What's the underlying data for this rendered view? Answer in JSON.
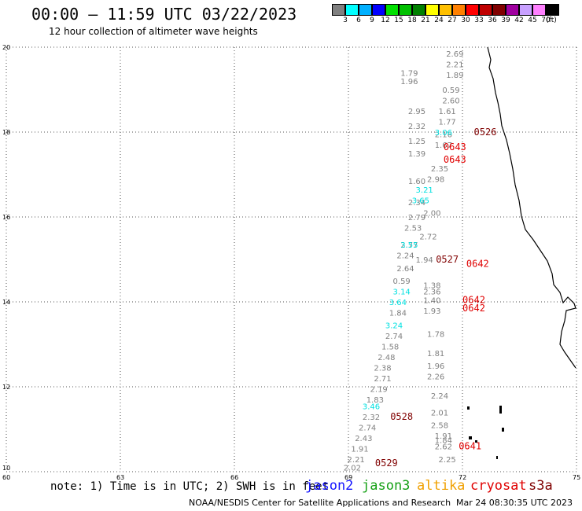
{
  "title": "00:00 – 11:59 UTC 03/22/2023",
  "subtitle": "12 hour collection of altimeter wave heights",
  "note": "note: 1) Time is in UTC; 2) SWH is in feet",
  "missions": [
    {
      "name": "jason2",
      "color": "#1515ff"
    },
    {
      "name": "jason3",
      "color": "#15a015"
    },
    {
      "name": "altika",
      "color": "#f0a000"
    },
    {
      "name": "cryosat",
      "color": "#e00000"
    },
    {
      "name": "s3a",
      "color": "#800000"
    }
  ],
  "credit": "NOAA/NESDIS Center for Satellite Applications and Research",
  "timestamp": "Mar 24 08:30:35 UTC 2023",
  "colorbar": {
    "unit": "(ft)",
    "bins": [
      {
        "label": "3",
        "color": "#808080"
      },
      {
        "label": "6",
        "color": "#00ffff"
      },
      {
        "label": "9",
        "color": "#00b0ff"
      },
      {
        "label": "12",
        "color": "#0000ff"
      },
      {
        "label": "15",
        "color": "#00e000"
      },
      {
        "label": "18",
        "color": "#00c000"
      },
      {
        "label": "21",
        "color": "#008000"
      },
      {
        "label": "24",
        "color": "#ffff00"
      },
      {
        "label": "27",
        "color": "#ffc000"
      },
      {
        "label": "30",
        "color": "#ff8000"
      },
      {
        "label": "33",
        "color": "#ff0000"
      },
      {
        "label": "36",
        "color": "#c00000"
      },
      {
        "label": "39",
        "color": "#800000"
      },
      {
        "label": "42",
        "color": "#a000a0"
      },
      {
        "label": "45",
        "color": "#c8a0ff"
      },
      {
        "label": "70",
        "color": "#ff80ff"
      },
      {
        "label": "",
        "color": "#000000"
      }
    ]
  },
  "chart_data": {
    "type": "scatter",
    "title": "00:00 – 11:59 UTC 03/22/2023",
    "xlim": [
      60,
      75
    ],
    "ylim": [
      10,
      20
    ],
    "x_ticks": [
      "60",
      "63",
      "66",
      "69",
      "72",
      "75"
    ],
    "y_ticks": [
      "10",
      "12",
      "14",
      "16",
      "18",
      "20"
    ],
    "grid": true,
    "colors": {
      "gray": "#808080",
      "cyan": "#00e0e0",
      "red": "#e00000",
      "darkred": "#800000"
    },
    "points": [
      {
        "lon": 71.8,
        "lat": 19.85,
        "v": "2.69",
        "c": "gray"
      },
      {
        "lon": 71.8,
        "lat": 19.6,
        "v": "2.21",
        "c": "gray"
      },
      {
        "lon": 71.8,
        "lat": 19.35,
        "v": "1.89",
        "c": "gray"
      },
      {
        "lon": 71.7,
        "lat": 19.0,
        "v": "0.59",
        "c": "gray"
      },
      {
        "lon": 71.7,
        "lat": 18.75,
        "v": "2.60",
        "c": "gray"
      },
      {
        "lon": 71.6,
        "lat": 18.5,
        "v": "1.61",
        "c": "gray"
      },
      {
        "lon": 71.6,
        "lat": 18.25,
        "v": "1.77",
        "c": "gray"
      },
      {
        "lon": 71.5,
        "lat": 17.95,
        "v": "2.16",
        "c": "gray"
      },
      {
        "lon": 71.5,
        "lat": 17.7,
        "v": "1.67",
        "c": "gray"
      },
      {
        "lon": 71.4,
        "lat": 17.15,
        "v": "2.35",
        "c": "gray"
      },
      {
        "lon": 71.3,
        "lat": 16.9,
        "v": "2.98",
        "c": "gray"
      },
      {
        "lon": 71.2,
        "lat": 16.1,
        "v": "2.00",
        "c": "gray"
      },
      {
        "lon": 71.1,
        "lat": 15.55,
        "v": "2.72",
        "c": "gray"
      },
      {
        "lon": 71.0,
        "lat": 15.0,
        "v": "1.94",
        "c": "gray"
      },
      {
        "lon": 71.2,
        "lat": 14.4,
        "v": "1.38",
        "c": "gray"
      },
      {
        "lon": 71.2,
        "lat": 14.25,
        "v": "2.36",
        "c": "gray"
      },
      {
        "lon": 71.2,
        "lat": 14.05,
        "v": "1.40",
        "c": "gray"
      },
      {
        "lon": 71.2,
        "lat": 13.8,
        "v": "1.93",
        "c": "gray"
      },
      {
        "lon": 71.3,
        "lat": 13.25,
        "v": "1.78",
        "c": "gray"
      },
      {
        "lon": 71.3,
        "lat": 12.8,
        "v": "1.81",
        "c": "gray"
      },
      {
        "lon": 71.3,
        "lat": 12.5,
        "v": "1.96",
        "c": "gray"
      },
      {
        "lon": 71.3,
        "lat": 12.25,
        "v": "2.26",
        "c": "gray"
      },
      {
        "lon": 71.4,
        "lat": 11.8,
        "v": "2.24",
        "c": "gray"
      },
      {
        "lon": 71.4,
        "lat": 11.4,
        "v": "2.01",
        "c": "gray"
      },
      {
        "lon": 71.4,
        "lat": 11.1,
        "v": "2.58",
        "c": "gray"
      },
      {
        "lon": 71.5,
        "lat": 10.85,
        "v": "1.91",
        "c": "gray"
      },
      {
        "lon": 71.5,
        "lat": 10.75,
        "v": "1.84",
        "c": "gray"
      },
      {
        "lon": 71.5,
        "lat": 10.6,
        "v": "2.62",
        "c": "gray"
      },
      {
        "lon": 71.6,
        "lat": 10.3,
        "v": "2.25",
        "c": "gray"
      },
      {
        "lon": 70.6,
        "lat": 19.4,
        "v": "1.79",
        "c": "gray"
      },
      {
        "lon": 70.6,
        "lat": 19.2,
        "v": "1.96",
        "c": "gray"
      },
      {
        "lon": 70.8,
        "lat": 18.5,
        "v": "2.95",
        "c": "gray"
      },
      {
        "lon": 70.8,
        "lat": 18.15,
        "v": "2.32",
        "c": "gray"
      },
      {
        "lon": 70.8,
        "lat": 17.8,
        "v": "1.25",
        "c": "gray"
      },
      {
        "lon": 70.8,
        "lat": 17.5,
        "v": "1.39",
        "c": "gray"
      },
      {
        "lon": 70.8,
        "lat": 16.85,
        "v": "1.60",
        "c": "gray"
      },
      {
        "lon": 70.8,
        "lat": 16.35,
        "v": "2.34",
        "c": "gray"
      },
      {
        "lon": 70.8,
        "lat": 16.0,
        "v": "2.79",
        "c": "gray"
      },
      {
        "lon": 70.7,
        "lat": 15.75,
        "v": "2.53",
        "c": "gray"
      },
      {
        "lon": 70.6,
        "lat": 15.35,
        "v": "2.77",
        "c": "gray"
      },
      {
        "lon": 70.5,
        "lat": 15.1,
        "v": "2.24",
        "c": "gray"
      },
      {
        "lon": 70.5,
        "lat": 14.8,
        "v": "2.64",
        "c": "gray"
      },
      {
        "lon": 70.4,
        "lat": 14.5,
        "v": "0.59",
        "c": "gray"
      },
      {
        "lon": 70.3,
        "lat": 13.75,
        "v": "1.84",
        "c": "gray"
      },
      {
        "lon": 70.2,
        "lat": 13.2,
        "v": "2.74",
        "c": "gray"
      },
      {
        "lon": 70.1,
        "lat": 12.95,
        "v": "1.58",
        "c": "gray"
      },
      {
        "lon": 70.0,
        "lat": 12.7,
        "v": "2.48",
        "c": "gray"
      },
      {
        "lon": 69.9,
        "lat": 12.45,
        "v": "2.38",
        "c": "gray"
      },
      {
        "lon": 69.9,
        "lat": 12.2,
        "v": "2.71",
        "c": "gray"
      },
      {
        "lon": 69.8,
        "lat": 11.95,
        "v": "2.19",
        "c": "gray"
      },
      {
        "lon": 69.7,
        "lat": 11.7,
        "v": "1.83",
        "c": "gray"
      },
      {
        "lon": 69.6,
        "lat": 11.3,
        "v": "2.32",
        "c": "gray"
      },
      {
        "lon": 69.5,
        "lat": 11.05,
        "v": "2.74",
        "c": "gray"
      },
      {
        "lon": 69.4,
        "lat": 10.8,
        "v": "2.43",
        "c": "gray"
      },
      {
        "lon": 69.3,
        "lat": 10.55,
        "v": "1.91",
        "c": "gray"
      },
      {
        "lon": 69.2,
        "lat": 10.3,
        "v": "2.21",
        "c": "gray"
      },
      {
        "lon": 69.1,
        "lat": 10.1,
        "v": "2.02",
        "c": "gray"
      },
      {
        "lon": 71.5,
        "lat": 18.0,
        "v": "3.06",
        "c": "cyan"
      },
      {
        "lon": 71.0,
        "lat": 16.65,
        "v": "3.21",
        "c": "cyan"
      },
      {
        "lon": 70.9,
        "lat": 16.4,
        "v": "3.65",
        "c": "cyan"
      },
      {
        "lon": 70.6,
        "lat": 15.35,
        "v": "3.55",
        "c": "cyan"
      },
      {
        "lon": 70.4,
        "lat": 14.25,
        "v": "3.14",
        "c": "cyan"
      },
      {
        "lon": 70.3,
        "lat": 14.0,
        "v": "3.64",
        "c": "cyan"
      },
      {
        "lon": 70.2,
        "lat": 13.45,
        "v": "3.24",
        "c": "cyan"
      },
      {
        "lon": 69.6,
        "lat": 11.55,
        "v": "3.46",
        "c": "cyan"
      },
      {
        "lon": 71.8,
        "lat": 17.65,
        "v": "0643",
        "c": "red"
      },
      {
        "lon": 71.8,
        "lat": 17.35,
        "v": "0643",
        "c": "red"
      },
      {
        "lon": 72.4,
        "lat": 14.9,
        "v": "0642",
        "c": "red"
      },
      {
        "lon": 72.3,
        "lat": 14.05,
        "v": "0642",
        "c": "red"
      },
      {
        "lon": 72.3,
        "lat": 13.85,
        "v": "0642",
        "c": "red"
      },
      {
        "lon": 72.2,
        "lat": 10.6,
        "v": "0641",
        "c": "red"
      },
      {
        "lon": 72.6,
        "lat": 18.0,
        "v": "0526",
        "c": "darkred"
      },
      {
        "lon": 71.6,
        "lat": 15.0,
        "v": "0527",
        "c": "darkred"
      },
      {
        "lon": 70.4,
        "lat": 11.3,
        "v": "0528",
        "c": "darkred"
      },
      {
        "lon": 70.0,
        "lat": 10.2,
        "v": "0529",
        "c": "darkred"
      }
    ]
  }
}
